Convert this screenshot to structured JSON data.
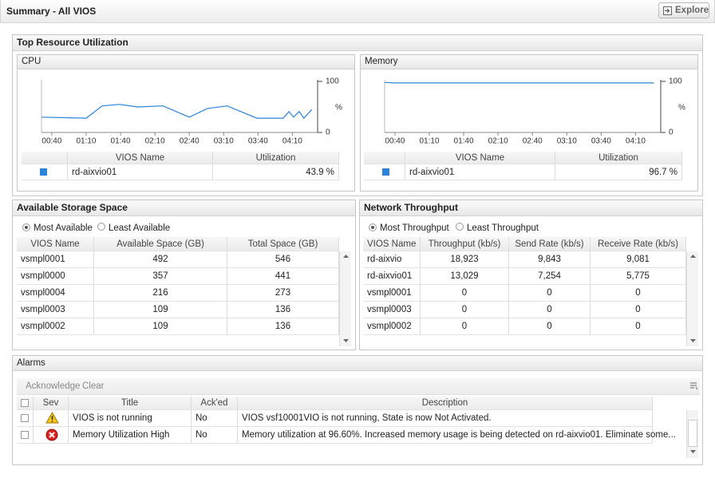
{
  "header": {
    "title": "Summary - All VIOS",
    "button": "Explore"
  },
  "top_resource": {
    "title": "Top Resource Utilization",
    "cpu": {
      "title": "CPU",
      "chart": {
        "type": "line",
        "x": [
          31,
          70,
          84,
          99,
          115,
          137,
          160,
          176,
          193,
          219,
          242,
          247,
          251,
          256,
          260,
          267
        ],
        "xlim": [
          31,
          272
        ],
        "xticks": [
          {
            "value": 40,
            "label": "00:40"
          },
          {
            "value": 70,
            "label": "01:10"
          },
          {
            "value": 100,
            "label": "01:40"
          },
          {
            "value": 130,
            "label": "02:10"
          },
          {
            "value": 160,
            "label": "02:40"
          },
          {
            "value": 190,
            "label": "03:10"
          },
          {
            "value": 220,
            "label": "03:40"
          },
          {
            "value": 250,
            "label": "04:10"
          }
        ],
        "ylim": [
          0,
          100
        ],
        "yticks": [
          0,
          100
        ],
        "y_label": "%",
        "series": [
          {
            "color": "#2a82da",
            "values": [
              30,
              28,
              52,
              55,
              50,
              52,
              30,
              47,
              52,
              28,
              28,
              41,
              30,
              41,
              28,
              45
            ]
          }
        ]
      },
      "table": {
        "columns": [
          "VIOS Name",
          "Utilization"
        ],
        "rows": [
          [
            "rd-aixvio01",
            "43.9 %"
          ]
        ]
      }
    },
    "memory": {
      "title": "Memory",
      "chart": {
        "type": "line",
        "x": [
          31,
          40,
          266
        ],
        "xlim": [
          31,
          272
        ],
        "xticks": [
          {
            "value": 40,
            "label": "00:40"
          },
          {
            "value": 70,
            "label": "01:10"
          },
          {
            "value": 100,
            "label": "01:40"
          },
          {
            "value": 130,
            "label": "02:10"
          },
          {
            "value": 160,
            "label": "02:40"
          },
          {
            "value": 190,
            "label": "03:10"
          },
          {
            "value": 220,
            "label": "03:40"
          },
          {
            "value": 250,
            "label": "04:10"
          }
        ],
        "ylim": [
          0,
          100
        ],
        "yticks": [
          0,
          100
        ],
        "y_label": "%",
        "series": [
          {
            "color": "#2a82da",
            "values": [
              98,
              97,
              97
            ]
          }
        ]
      },
      "table": {
        "columns": [
          "VIOS Name",
          "Utilization"
        ],
        "rows": [
          [
            "rd-aixvio01",
            "96.7 %"
          ]
        ]
      }
    }
  },
  "storage": {
    "title": "Available Storage Space",
    "options": [
      "Most Available",
      "Least Available"
    ],
    "columns": [
      "VIOS Name",
      "Available Space (GB)",
      "Total Space (GB)"
    ],
    "rows": [
      [
        "vsmpl0001",
        "492",
        "546"
      ],
      [
        "vsmpl0000",
        "357",
        "441"
      ],
      [
        "vsmpl0004",
        "216",
        "273"
      ],
      [
        "vsmpl0003",
        "109",
        "136"
      ],
      [
        "vsmpl0002",
        "109",
        "136"
      ]
    ]
  },
  "network": {
    "title": "Network Throughput",
    "options": [
      "Most Throughput",
      "Least Throughput"
    ],
    "columns": [
      "VIOS Name",
      "Throughput (kb/s)",
      "Send Rate (kb/s)",
      "Receive Rate (kb/s)"
    ],
    "rows": [
      [
        "rd-aixvio",
        "18,923",
        "9,843",
        "9,081"
      ],
      [
        "rd-aixvio01",
        "13,029",
        "7,254",
        "5,775"
      ],
      [
        "vsmpl0001",
        "0",
        "0",
        "0"
      ],
      [
        "vsmpl0003",
        "0",
        "0",
        "0"
      ],
      [
        "vsmpl0002",
        "0",
        "0",
        "0"
      ]
    ]
  },
  "alarms": {
    "title": "Alarms",
    "actions": [
      "Acknowledge",
      "Clear"
    ],
    "columns": [
      "Sev",
      "Title",
      "Ack'ed",
      "Description"
    ],
    "rows": [
      [
        "VIOS is not running",
        "No",
        "VIOS vsf10001VIO is not running, State is now Not Activated."
      ],
      [
        "Memory Utilization High",
        "No",
        "Memory utilization at 96.60%. Increased memory usage is being detected on rd-aixvio01. Eliminate some..."
      ]
    ]
  }
}
